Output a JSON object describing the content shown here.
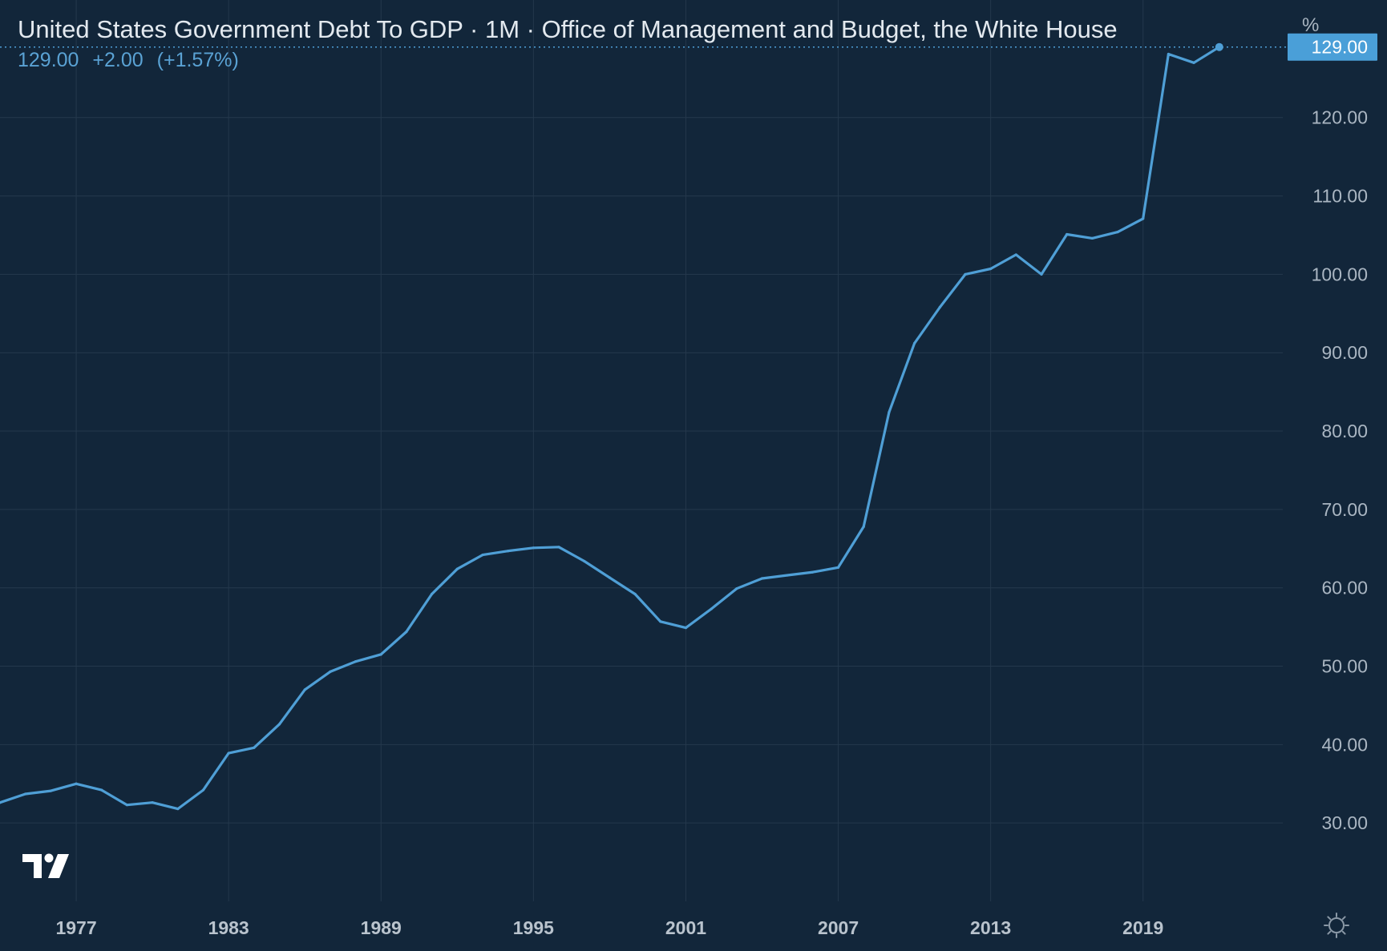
{
  "header": {
    "title": "United States Government Debt To GDP · 1M · Office of Management and Budget, the White House",
    "last_value": "129.00",
    "change": "+2.00",
    "change_pct": "(+1.57%)"
  },
  "axis": {
    "unit_label": "%",
    "last_value_badge": "129.00"
  },
  "colors": {
    "background": "#12263a",
    "line": "#4f9fd6",
    "grid": "#24384c",
    "text": "#aab6c2",
    "badge": "#4a9fd8"
  },
  "icons": {
    "logo": "tradingview-logo",
    "settings": "gear-icon"
  },
  "chart_data": {
    "type": "line",
    "title": "United States Government Debt To GDP",
    "ylabel": "%",
    "xlim": [
      1974,
      2024.5
    ],
    "ylim": [
      20,
      135
    ],
    "grid": true,
    "x_ticks": [
      1977,
      1983,
      1989,
      1995,
      2001,
      2007,
      2013,
      2019
    ],
    "x_tick_labels": [
      "1977",
      "1983",
      "1989",
      "1995",
      "2001",
      "2007",
      "2013",
      "2019"
    ],
    "y_ticks": [
      30,
      40,
      50,
      60,
      70,
      80,
      90,
      100,
      110,
      120
    ],
    "y_tick_labels": [
      "30.00",
      "40.00",
      "50.00",
      "60.00",
      "70.00",
      "80.00",
      "90.00",
      "100.00",
      "110.00",
      "120.00"
    ],
    "series": [
      {
        "x": [
          1974,
          1975,
          1976,
          1977,
          1978,
          1979,
          1980,
          1981,
          1982,
          1983,
          1984,
          1985,
          1986,
          1987,
          1988,
          1989,
          1990,
          1991,
          1992,
          1993,
          1994,
          1995,
          1996,
          1997,
          1998,
          1999,
          2000,
          2001,
          2002,
          2003,
          2004,
          2005,
          2006,
          2007,
          2008,
          2009,
          2010,
          2011,
          2012,
          2013,
          2014,
          2015,
          2016,
          2017,
          2018,
          2019,
          2020,
          2021,
          2022
        ],
        "y": [
          32.6,
          33.7,
          34.1,
          35.0,
          34.2,
          32.3,
          32.6,
          31.8,
          34.2,
          38.9,
          39.6,
          42.6,
          47.0,
          49.3,
          50.6,
          51.5,
          54.4,
          59.2,
          62.4,
          64.2,
          64.7,
          65.1,
          65.2,
          63.4,
          61.3,
          59.2,
          55.7,
          54.9,
          57.3,
          59.9,
          61.2,
          61.6,
          62.0,
          62.6,
          67.8,
          82.4,
          91.2,
          95.8,
          100.0,
          100.7,
          102.5,
          100.0,
          105.1,
          104.6,
          105.4,
          107.1,
          128.1,
          127.0,
          129.0
        ]
      }
    ]
  }
}
